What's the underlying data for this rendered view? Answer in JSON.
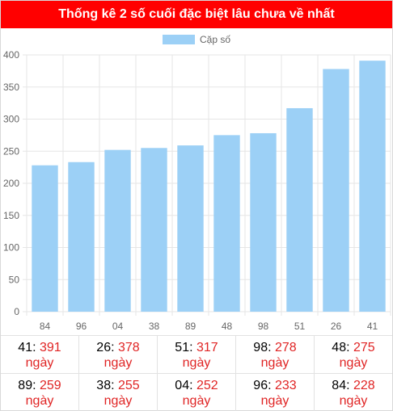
{
  "title": "Thống kê 2 số cuối đặc biệt lâu chưa về nhất",
  "legend_label": "Cặp số",
  "colors": {
    "header_bg": "#ff0000",
    "bar": "#9cd0f6",
    "days_text": "#e02424"
  },
  "chart_data": {
    "type": "bar",
    "categories": [
      "84",
      "96",
      "04",
      "38",
      "89",
      "48",
      "98",
      "51",
      "26",
      "41"
    ],
    "series": [
      {
        "name": "Cặp số",
        "values": [
          228,
          233,
          252,
          255,
          259,
          275,
          278,
          317,
          378,
          391
        ]
      }
    ],
    "ylim": [
      0,
      400
    ],
    "yticks": [
      0,
      50,
      100,
      150,
      200,
      250,
      300,
      350,
      400
    ],
    "grid": true,
    "legend_position": "top-center"
  },
  "stats": {
    "unit": "ngày",
    "rows": [
      [
        {
          "number": "41",
          "days": "391"
        },
        {
          "number": "26",
          "days": "378"
        },
        {
          "number": "51",
          "days": "317"
        },
        {
          "number": "98",
          "days": "278"
        },
        {
          "number": "48",
          "days": "275"
        }
      ],
      [
        {
          "number": "89",
          "days": "259"
        },
        {
          "number": "38",
          "days": "255"
        },
        {
          "number": "04",
          "days": "252"
        },
        {
          "number": "96",
          "days": "233"
        },
        {
          "number": "84",
          "days": "228"
        }
      ]
    ]
  }
}
